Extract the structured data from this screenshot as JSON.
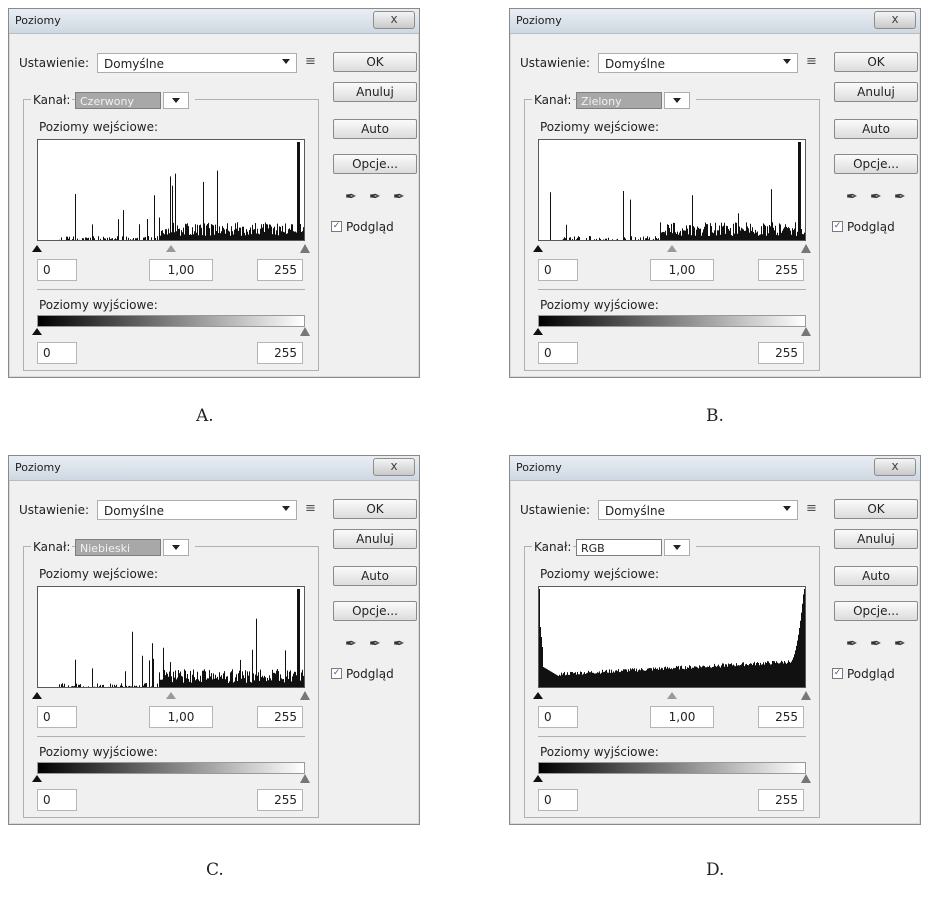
{
  "dialogs": [
    {
      "title": "Poziomy",
      "close": "x",
      "preset_label": "Ustawienie:",
      "preset_value": "Domyślne",
      "ok": "OK",
      "cancel": "Anuluj",
      "auto": "Auto",
      "options": "Opcje...",
      "preview": "Podgląd",
      "channel_label": "Kanał:",
      "channel_value": "Czerwony",
      "input_levels": "Poziomy wejściowe:",
      "output_levels": "Poziomy wyjściowe:",
      "in_black": "0",
      "in_gamma": "1,00",
      "in_white": "255",
      "out_black": "0",
      "out_white": "255",
      "caption": "A."
    },
    {
      "title": "Poziomy",
      "close": "x",
      "preset_label": "Ustawienie:",
      "preset_value": "Domyślne",
      "ok": "OK",
      "cancel": "Anuluj",
      "auto": "Auto",
      "options": "Opcje...",
      "preview": "Podgląd",
      "channel_label": "Kanał:",
      "channel_value": "Zielony",
      "input_levels": "Poziomy wejściowe:",
      "output_levels": "Poziomy wyjściowe:",
      "in_black": "0",
      "in_gamma": "1,00",
      "in_white": "255",
      "out_black": "0",
      "out_white": "255",
      "caption": "B."
    },
    {
      "title": "Poziomy",
      "close": "x",
      "preset_label": "Ustawienie:",
      "preset_value": "Domyślne",
      "ok": "OK",
      "cancel": "Anuluj",
      "auto": "Auto",
      "options": "Opcje...",
      "preview": "Podgląd",
      "channel_label": "Kanał:",
      "channel_value": "Niebieski",
      "input_levels": "Poziomy wejściowe:",
      "output_levels": "Poziomy wyjściowe:",
      "in_black": "0",
      "in_gamma": "1,00",
      "in_white": "255",
      "out_black": "0",
      "out_white": "255",
      "caption": "C."
    },
    {
      "title": "Poziomy",
      "close": "x",
      "preset_label": "Ustawienie:",
      "preset_value": "Domyślne",
      "ok": "OK",
      "cancel": "Anuluj",
      "auto": "Auto",
      "options": "Opcje...",
      "preview": "Podgląd",
      "channel_label": "Kanał:",
      "channel_value": "RGB",
      "input_levels": "Poziomy wejściowe:",
      "output_levels": "Poziomy wyjściowe:",
      "in_black": "0",
      "in_gamma": "1,00",
      "in_white": "255",
      "out_black": "0",
      "out_white": "255",
      "caption": "D."
    }
  ],
  "icons": {
    "close": "close-icon",
    "menu": "preset-menu-icon",
    "dropdown": "chevron-down-icon",
    "eyedroppers": [
      "black-eyedropper-icon",
      "gray-eyedropper-icon",
      "white-eyedropper-icon"
    ],
    "checkmark": "checkmark-icon"
  },
  "colors": {
    "dialog_bg": "#f0f0f0",
    "channel_highlight": "#a8a8a8",
    "histogram": "#111111"
  }
}
